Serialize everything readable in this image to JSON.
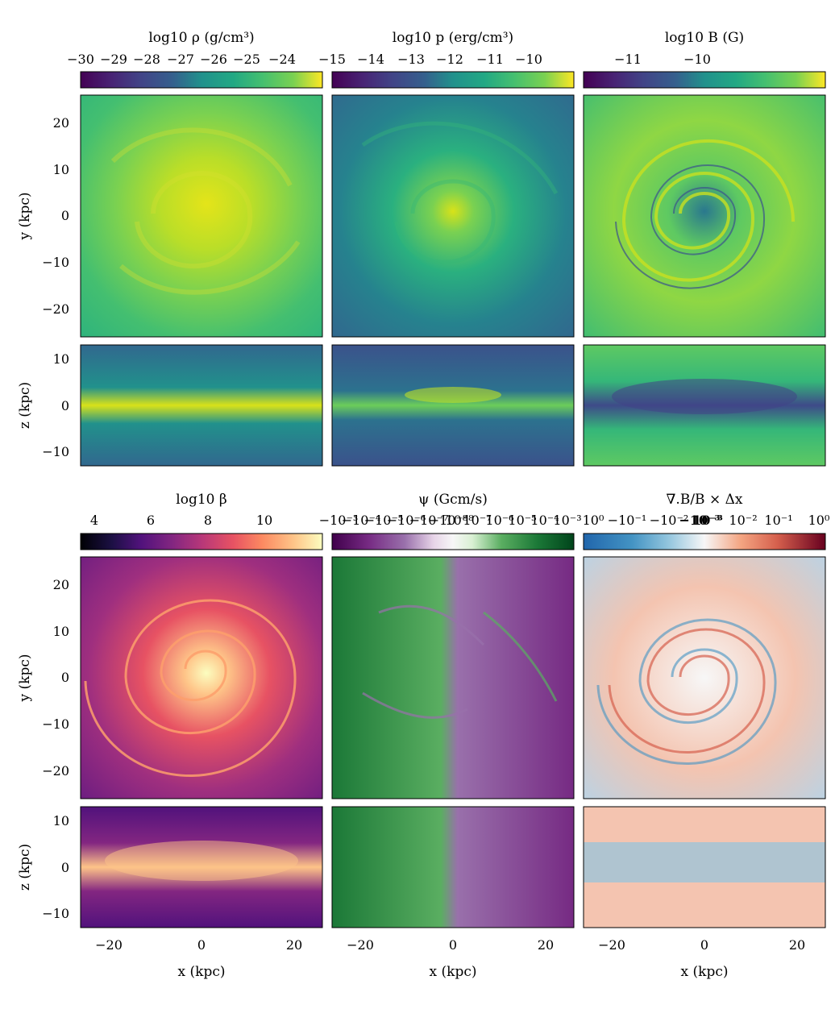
{
  "figure": {
    "x_label": "x (kpc)",
    "y_label": "y (kpc)",
    "z_label": "z (kpc)"
  },
  "chart_data": [
    {
      "type": "heatmap",
      "panel": "log10 rho face-on / edge-on",
      "colorbar_label": "log10 ρ (g/cm³)",
      "colorbar_ticks": [
        "−30",
        "−29",
        "−28",
        "−27",
        "−26",
        "−25",
        "−24"
      ],
      "colorbar_range": [
        -30.0,
        -23.4
      ],
      "colormap": "viridis",
      "x_ticks": [
        "−20",
        "0",
        "20"
      ],
      "y_ticks": [
        "20",
        "10",
        "0",
        "−10",
        "−20"
      ],
      "z_ticks": [
        "10",
        "0",
        "−10"
      ],
      "xlim": [
        -26,
        26
      ],
      "ylim": [
        -26,
        26
      ],
      "zlim": [
        -13,
        13
      ]
    },
    {
      "type": "heatmap",
      "panel": "log10 p face-on / edge-on",
      "colorbar_label": "log10 p (erg/cm³)",
      "colorbar_ticks": [
        "−15",
        "−14",
        "−13",
        "−12",
        "−11",
        "−10"
      ],
      "colorbar_range": [
        -15.0,
        -9.2
      ],
      "colormap": "viridis",
      "x_ticks": [
        "−20",
        "0",
        "20"
      ],
      "xlim": [
        -26,
        26
      ],
      "ylim": [
        -26,
        26
      ],
      "zlim": [
        -13,
        13
      ]
    },
    {
      "type": "heatmap",
      "panel": "log10 B face-on / edge-on",
      "colorbar_label": "log10 B (G)",
      "colorbar_ticks": [
        "−11",
        "−10"
      ],
      "colorbar_range": [
        -11.5,
        -9.1
      ],
      "colormap": "viridis",
      "x_ticks": [
        "−20",
        "0",
        "20"
      ],
      "xlim": [
        -26,
        26
      ],
      "ylim": [
        -26,
        26
      ],
      "zlim": [
        -13,
        13
      ]
    },
    {
      "type": "heatmap",
      "panel": "log10 beta face-on / edge-on",
      "colorbar_label": "log10 β",
      "colorbar_ticks": [
        "4",
        "6",
        "8",
        "10"
      ],
      "colorbar_range": [
        3.5,
        12.0
      ],
      "colormap": "magma",
      "x_ticks": [
        "−20",
        "0",
        "20"
      ],
      "y_ticks": [
        "20",
        "10",
        "0",
        "−10",
        "−20"
      ],
      "z_ticks": [
        "10",
        "0",
        "−10"
      ],
      "xlim": [
        -26,
        26
      ],
      "ylim": [
        -26,
        26
      ],
      "zlim": [
        -13,
        13
      ]
    },
    {
      "type": "heatmap",
      "panel": "psi face-on / edge-on",
      "colorbar_label": "ψ (Gcm/s)",
      "colorbar_ticks": [
        "−10⁻³",
        "−10⁻⁴",
        "−10⁻⁵",
        "−10⁻⁶",
        "−10⁻⁷",
        "−10⁻⁸",
        "10⁻⁸",
        "10⁻⁷",
        "10⁻⁶",
        "10⁻⁵",
        "10⁻⁴",
        "10⁻³"
      ],
      "colorbar_scale": "symlog",
      "colormap": "PRGn",
      "x_ticks": [
        "−20",
        "0",
        "20"
      ],
      "xlim": [
        -26,
        26
      ],
      "ylim": [
        -26,
        26
      ],
      "zlim": [
        -13,
        13
      ]
    },
    {
      "type": "heatmap",
      "panel": "divB/B dx face-on / edge-on",
      "colorbar_label": "∇.B/B × Δx",
      "colorbar_ticks": [
        "10⁰",
        "−10⁻¹",
        "−10⁻²",
        "−10⁻³",
        "10⁻³",
        "10⁻²",
        "10⁻¹",
        "10⁰"
      ],
      "colorbar_tick_prefix": "−",
      "colorbar_scale": "symlog",
      "colormap": "RdBu_r",
      "x_ticks": [
        "−20",
        "0",
        "20"
      ],
      "xlim": [
        -26,
        26
      ],
      "ylim": [
        -26,
        26
      ],
      "zlim": [
        -13,
        13
      ]
    }
  ]
}
